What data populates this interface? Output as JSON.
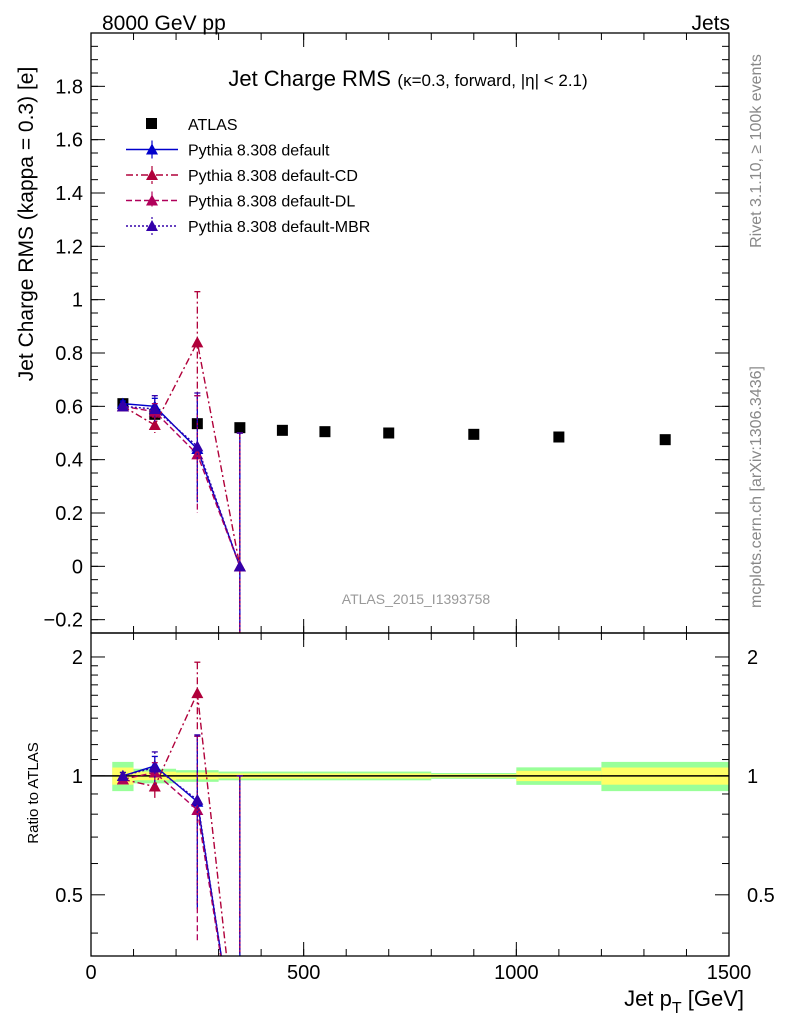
{
  "header": {
    "left": "8000 GeV pp",
    "right": "Jets"
  },
  "side_labels": {
    "rivet": "Rivet 3.1.10, ≥ 100k events",
    "mcplots": "mcplots.cern.ch [arXiv:1306.3436]"
  },
  "chart_data": [
    {
      "type": "scatter",
      "panel": "main",
      "title": "Jet Charge RMS",
      "title_sub": "(κ=0.3, forward, |η| < 2.1)",
      "ylabel": "Jet Charge RMS (kappa = 0.3) [e]",
      "watermark": "ATLAS_2015_I1393758",
      "xlim": [
        0,
        1500
      ],
      "ylim": [
        -0.25,
        2.0
      ],
      "yticks": [
        -0.2,
        0,
        0.2,
        0.4,
        0.6,
        0.8,
        1,
        1.2,
        1.4,
        1.6,
        1.8
      ],
      "ytick_labels": [
        "−0.2",
        "0",
        "0.2",
        "0.4",
        "0.6",
        "0.8",
        "1",
        "1.2",
        "1.4",
        "1.6",
        "1.8"
      ],
      "legend_position": "top-left",
      "series": [
        {
          "name": "ATLAS",
          "color": "#000000",
          "marker": "square",
          "x": [
            75,
            150,
            250,
            350,
            450,
            550,
            700,
            900,
            1100,
            1350
          ],
          "y": [
            0.61,
            0.57,
            0.535,
            0.52,
            0.51,
            0.505,
            0.5,
            0.495,
            0.485,
            0.475
          ]
        },
        {
          "name": "Pythia 8.308 default",
          "color": "#0000cc",
          "line": "solid",
          "marker": "triangle",
          "x": [
            75,
            150,
            250,
            350
          ],
          "y": [
            0.61,
            0.6,
            0.44,
            0.0
          ],
          "yerr": [
            0.01,
            0.03,
            0.2,
            0.5
          ]
        },
        {
          "name": "Pythia 8.308 default-CD",
          "color": "#b0003a",
          "line": "dashdot",
          "marker": "triangle",
          "x": [
            75,
            150,
            250,
            350
          ],
          "y": [
            0.6,
            0.53,
            0.84,
            0.0
          ],
          "yerr": [
            0.01,
            0.03,
            0.19,
            0.5
          ]
        },
        {
          "name": "Pythia 8.308 default-DL",
          "color": "#b0005a",
          "line": "dashed",
          "marker": "triangle",
          "x": [
            75,
            150,
            250,
            350
          ],
          "y": [
            0.6,
            0.58,
            0.42,
            0.0
          ],
          "yerr": [
            0.01,
            0.03,
            0.22,
            0.5
          ]
        },
        {
          "name": "Pythia 8.308 default-MBR",
          "color": "#3300aa",
          "line": "dotted",
          "marker": "triangle",
          "x": [
            75,
            150,
            250,
            350
          ],
          "y": [
            0.6,
            0.59,
            0.45,
            0.0
          ],
          "yerr": [
            0.01,
            0.05,
            0.2,
            0.5
          ]
        }
      ]
    },
    {
      "type": "line",
      "panel": "ratio",
      "ylabel": "Ratio to ATLAS",
      "xlabel": "Jet p",
      "xlabel_sub": "T",
      "xlabel_unit": " [GeV]",
      "xlim": [
        0,
        1500
      ],
      "ylim": [
        0.35,
        2.3
      ],
      "scale_y": "log",
      "xticks": [
        0,
        500,
        1000,
        1500
      ],
      "xtick_labels": [
        "0",
        "500",
        "1000",
        "1500"
      ],
      "yticks": [
        0.5,
        1,
        2
      ],
      "ytick_labels": [
        "0.5",
        "1",
        "2"
      ],
      "band_colors": {
        "inner": "#ffff66",
        "outer": "#99ff99"
      },
      "band": [
        {
          "xlo": 50,
          "xhi": 100,
          "lo": 0.95,
          "hi": 1.05
        },
        {
          "xlo": 100,
          "xhi": 200,
          "lo": 0.975,
          "hi": 1.025
        },
        {
          "xlo": 200,
          "xhi": 300,
          "lo": 0.98,
          "hi": 1.02
        },
        {
          "xlo": 300,
          "xhi": 400,
          "lo": 0.985,
          "hi": 1.015
        },
        {
          "xlo": 400,
          "xhi": 500,
          "lo": 0.985,
          "hi": 1.015
        },
        {
          "xlo": 500,
          "xhi": 600,
          "lo": 0.985,
          "hi": 1.015
        },
        {
          "xlo": 600,
          "xhi": 800,
          "lo": 0.985,
          "hi": 1.015
        },
        {
          "xlo": 800,
          "xhi": 1000,
          "lo": 0.99,
          "hi": 1.01
        },
        {
          "xlo": 1000,
          "xhi": 1200,
          "lo": 0.97,
          "hi": 1.03
        },
        {
          "xlo": 1200,
          "xhi": 1500,
          "lo": 0.95,
          "hi": 1.05
        }
      ],
      "series": [
        {
          "name": "Pythia 8.308 default",
          "color": "#0000cc",
          "line": "solid",
          "x": [
            75,
            150,
            250,
            350
          ],
          "y": [
            1.0,
            1.06,
            0.86,
            0.0
          ],
          "yerr": [
            0.02,
            0.06,
            0.4,
            1.0
          ]
        },
        {
          "name": "Pythia 8.308 default-CD",
          "color": "#b0003a",
          "line": "dashdot",
          "x": [
            75,
            150,
            250,
            350
          ],
          "y": [
            0.98,
            0.94,
            1.62,
            0.0
          ],
          "yerr": [
            0.02,
            0.06,
            0.32,
            1.0
          ]
        },
        {
          "name": "Pythia 8.308 default-DL",
          "color": "#b0005a",
          "line": "dashed",
          "x": [
            75,
            150,
            250,
            350
          ],
          "y": [
            0.98,
            1.02,
            0.82,
            0.0
          ],
          "yerr": [
            0.02,
            0.06,
            0.44,
            1.0
          ]
        },
        {
          "name": "Pythia 8.308 default-MBR",
          "color": "#3300aa",
          "line": "dotted",
          "x": [
            75,
            150,
            250,
            350
          ],
          "y": [
            1.0,
            1.05,
            0.87,
            0.0
          ],
          "yerr": [
            0.02,
            0.1,
            0.4,
            1.0
          ]
        }
      ]
    }
  ]
}
